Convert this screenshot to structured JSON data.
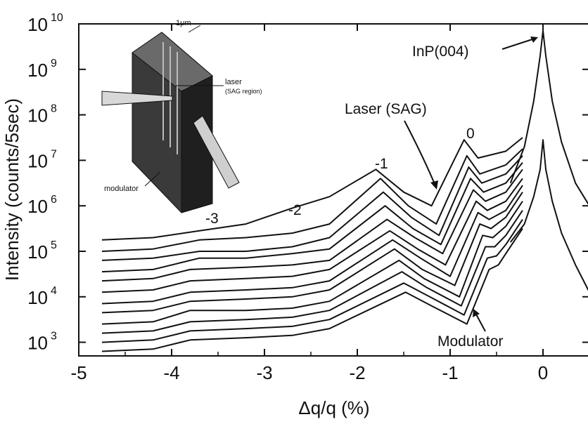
{
  "chart_data": {
    "type": "line",
    "title": "",
    "xlabel": "Δq/q (%)",
    "ylabel": "Intensity (counts/5sec)",
    "xlim": [
      -5,
      0.5
    ],
    "ylim_log10": [
      2.7,
      10
    ],
    "y_scale": "log",
    "x_ticks": [
      "-5",
      "-4",
      "-3",
      "-2",
      "-1",
      "0"
    ],
    "y_ticks": [
      {
        "base": "10",
        "exp": "3"
      },
      {
        "base": "10",
        "exp": "4"
      },
      {
        "base": "10",
        "exp": "5"
      },
      {
        "base": "10",
        "exp": "6"
      },
      {
        "base": "10",
        "exp": "7"
      },
      {
        "base": "10",
        "exp": "8"
      },
      {
        "base": "10",
        "exp": "9"
      },
      {
        "base": "10",
        "exp": "10"
      }
    ],
    "grid": false,
    "annotations": {
      "inp": "InP(004)",
      "laser": "Laser (SAG)",
      "modulator": "Modulator",
      "order_0": "0",
      "order_m1": "-1",
      "order_m2": "-2",
      "order_m3": "-3",
      "inset_scale": "1μm",
      "inset_laser": "laser",
      "inset_laser_sub": "(SAG region)",
      "inset_modulator": "modulator"
    },
    "series": [
      {
        "baseline_log10": 5.25,
        "x": [
          -4.75,
          -4.2,
          -3.7,
          -3.2,
          -2.7,
          -2.3,
          -1.8,
          -1.5,
          -1.2,
          -0.85,
          -0.7,
          -0.4,
          -0.22
        ],
        "y_log10": [
          5.25,
          5.3,
          5.45,
          5.6,
          5.95,
          6.2,
          6.8,
          6.3,
          6.0,
          7.45,
          7.05,
          7.2,
          7.5
        ]
      },
      {
        "baseline_log10": 5.0,
        "x": [
          -4.75,
          -4.2,
          -3.7,
          -3.2,
          -2.7,
          -2.3,
          -1.75,
          -1.45,
          -1.15,
          -0.82,
          -0.68,
          -0.4,
          -0.22
        ],
        "y_log10": [
          5.0,
          5.05,
          5.25,
          5.3,
          5.4,
          5.6,
          6.6,
          6.0,
          5.6,
          7.1,
          6.7,
          6.9,
          7.25
        ]
      },
      {
        "baseline_log10": 4.75,
        "x": [
          -4.75,
          -4.2,
          -3.7,
          -3.2,
          -2.7,
          -2.3,
          -1.72,
          -1.42,
          -1.12,
          -0.8,
          -0.66,
          -0.4,
          -0.22
        ],
        "y_log10": [
          4.8,
          4.85,
          5.0,
          5.0,
          5.1,
          5.3,
          6.3,
          5.75,
          5.35,
          6.85,
          6.5,
          6.7,
          7.1
        ]
      },
      {
        "baseline_log10": 4.55,
        "x": [
          -4.75,
          -4.2,
          -3.7,
          -3.2,
          -2.7,
          -2.3,
          -1.7,
          -1.4,
          -1.1,
          -0.78,
          -0.64,
          -0.4,
          -0.22
        ],
        "y_log10": [
          4.55,
          4.6,
          4.85,
          4.85,
          4.95,
          5.05,
          6.0,
          5.5,
          5.15,
          6.6,
          6.3,
          6.5,
          6.95
        ]
      },
      {
        "baseline_log10": 4.35,
        "x": [
          -4.75,
          -4.2,
          -3.8,
          -3.2,
          -2.7,
          -2.3,
          -1.68,
          -1.38,
          -1.08,
          -0.75,
          -0.62,
          -0.4,
          -0.22
        ],
        "y_log10": [
          4.35,
          4.4,
          4.6,
          4.65,
          4.7,
          4.8,
          5.7,
          5.3,
          4.95,
          6.35,
          6.1,
          6.3,
          6.8
        ]
      },
      {
        "baseline_log10": 4.1,
        "x": [
          -4.75,
          -4.2,
          -3.8,
          -3.2,
          -2.7,
          -2.3,
          -1.65,
          -1.35,
          -1.05,
          -0.72,
          -0.6,
          -0.4,
          -0.22
        ],
        "y_log10": [
          4.1,
          4.15,
          4.35,
          4.4,
          4.45,
          4.6,
          5.45,
          5.05,
          4.7,
          6.1,
          5.9,
          6.1,
          6.6
        ]
      },
      {
        "baseline_log10": 3.85,
        "x": [
          -4.75,
          -4.2,
          -3.8,
          -3.2,
          -2.7,
          -2.3,
          -1.62,
          -1.32,
          -1.0,
          -0.7,
          -0.58,
          -0.4,
          -0.22
        ],
        "y_log10": [
          3.85,
          3.9,
          4.1,
          4.15,
          4.2,
          4.35,
          5.25,
          4.85,
          4.45,
          5.85,
          5.7,
          5.9,
          6.45
        ]
      },
      {
        "baseline_log10": 3.65,
        "x": [
          -4.75,
          -4.2,
          -3.8,
          -3.2,
          -2.7,
          -2.3,
          -1.6,
          -1.3,
          -0.95,
          -0.68,
          -0.56,
          -0.4,
          -0.22
        ],
        "y_log10": [
          3.65,
          3.7,
          3.9,
          3.95,
          4.0,
          4.15,
          5.05,
          4.6,
          4.25,
          5.6,
          5.5,
          5.75,
          6.3
        ]
      },
      {
        "baseline_log10": 3.4,
        "x": [
          -4.75,
          -4.2,
          -3.8,
          -3.2,
          -2.7,
          -2.3,
          -1.55,
          -1.28,
          -0.9,
          -0.65,
          -0.54,
          -0.4,
          -0.22
        ],
        "y_log10": [
          3.4,
          3.45,
          3.7,
          3.7,
          3.75,
          3.9,
          4.8,
          4.4,
          4.0,
          5.35,
          5.3,
          5.55,
          6.1
        ]
      },
      {
        "baseline_log10": 3.2,
        "x": [
          -4.75,
          -4.2,
          -3.8,
          -3.2,
          -2.7,
          -2.3,
          -1.52,
          -1.25,
          -0.88,
          -0.62,
          -0.52,
          -0.4,
          -0.22
        ],
        "y_log10": [
          3.2,
          3.25,
          3.45,
          3.5,
          3.55,
          3.7,
          4.55,
          4.2,
          3.8,
          5.1,
          5.1,
          5.35,
          5.9
        ]
      },
      {
        "baseline_log10": 3.0,
        "x": [
          -4.75,
          -4.2,
          -3.8,
          -3.2,
          -2.7,
          -2.3,
          -1.5,
          -1.22,
          -0.85,
          -0.6,
          -0.5,
          -0.4,
          -0.22
        ],
        "y_log10": [
          3.0,
          3.05,
          3.25,
          3.3,
          3.35,
          3.5,
          4.3,
          4.0,
          3.6,
          4.85,
          4.9,
          5.15,
          5.7
        ]
      },
      {
        "baseline_log10": 2.8,
        "x": [
          -4.75,
          -4.2,
          -3.8,
          -3.2,
          -2.7,
          -2.3,
          -1.48,
          -1.2,
          -0.82,
          -0.58,
          -0.48,
          -0.4,
          -0.22
        ],
        "y_log10": [
          2.8,
          2.85,
          3.05,
          3.1,
          3.15,
          3.3,
          4.1,
          3.8,
          3.4,
          4.6,
          4.7,
          4.95,
          5.5
        ]
      }
    ],
    "substrate_peaks": [
      {
        "x": [
          -0.35,
          -0.2,
          -0.1,
          -0.03,
          0,
          0.03,
          0.1,
          0.2,
          0.35,
          0.5
        ],
        "y_log10": [
          6.5,
          7.3,
          8.3,
          9.3,
          9.85,
          9.3,
          8.3,
          7.4,
          6.5,
          6.0
        ]
      },
      {
        "x": [
          -0.35,
          -0.2,
          -0.1,
          -0.03,
          0,
          0.03,
          0.1,
          0.2,
          0.35,
          0.5
        ],
        "y_log10": [
          5.2,
          5.6,
          6.2,
          6.8,
          7.45,
          6.8,
          6.1,
          5.4,
          4.7,
          4.1
        ]
      }
    ]
  }
}
